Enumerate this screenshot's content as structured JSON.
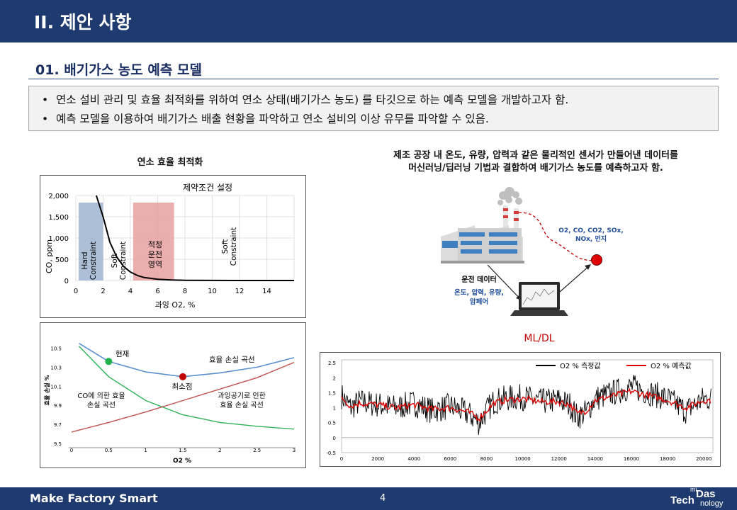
{
  "header": {
    "title": "II. 제안 사항"
  },
  "section": {
    "title": "01. 배기가스 농도 예측 모델"
  },
  "bullets": [
    "연소 설비 관리 및 효율 최적화를 위하여 연소 상태(배기가스 농도) 를 타깃으로 하는 예측 모델을 개발하고자 함.",
    "예측 모델을 이용하여 배기가스 배출 현황을  파악하고 연소 설비의 이상 유무를 파악할 수 있음."
  ],
  "left": {
    "caption": "연소 효율 최적화",
    "chart1": {
      "title": "제약조건 설정",
      "ylabel": "CO, ppm",
      "xlabel": "과잉 O2, %",
      "zones": {
        "hard": "Hard Constraint",
        "soft1": "Soft Constraint",
        "optimal": [
          "적정",
          "운전",
          "영역"
        ],
        "soft2": "Soft Constraint"
      }
    },
    "chart2": {
      "ylabel": "효율 손실 %",
      "xlabel": "O2 %",
      "labels": {
        "current": "현재",
        "minimum": "최소점",
        "total": "효율 손실 곡선",
        "co_curve": [
          "CO에 의한 효율",
          "손실 곡선"
        ],
        "air_curve": [
          "과잉공기로 인한",
          "효율 손실 곡선"
        ]
      }
    }
  },
  "right": {
    "caption": [
      "제조 공장 내 온도, 유량, 압력과 같은 물리적인 센서가 만들어낸 데이터를",
      "머신러닝/딥러닝 기법과 결합하여 배기가스 농도를 예측하고자 함."
    ],
    "diagram": {
      "gas_list": [
        "O2, CO, CO2, SOx,",
        "NOx, 먼지"
      ],
      "operation_data": "운전 데이터",
      "sensors": [
        "온도, 압력, 유량,",
        "암페어"
      ],
      "mldl": "ML/DL"
    },
    "chart3": {
      "legend_measured": "O2 % 측정값",
      "legend_predicted": "O2 % 예측값"
    }
  },
  "chart_data": [
    {
      "type": "line",
      "title": "제약조건 설정",
      "xlabel": "과잉 O2, %",
      "ylabel": "CO, ppm",
      "xlim": [
        0,
        16
      ],
      "ylim": [
        0,
        2000
      ],
      "x_ticks": [
        "0",
        "2",
        "4",
        "6",
        "8",
        "10",
        "12",
        "14"
      ],
      "y_ticks": [
        "0",
        "500",
        "1,000",
        "1,500",
        "2,000"
      ],
      "series": [
        {
          "x": [
            1.5,
            2,
            2.5,
            3,
            3.5,
            4,
            4.5,
            5,
            6,
            7,
            8,
            10,
            12,
            14,
            16
          ],
          "y": [
            2000,
            1500,
            900,
            550,
            330,
            200,
            120,
            70,
            30,
            12,
            5,
            2,
            0,
            0,
            0
          ]
        }
      ],
      "shaded_regions": [
        {
          "label": "Hard Constraint",
          "x": [
            0,
            2
          ],
          "color": "#9fb4cf"
        },
        {
          "label": "적정 운전 영역",
          "x": [
            4.2,
            7.2
          ],
          "color": "#e8a0a0"
        }
      ],
      "grid": true
    },
    {
      "type": "line",
      "xlabel": "O2 %",
      "ylabel": "효율 손실 %",
      "xlim": [
        0,
        3
      ],
      "ylim": [
        9.5,
        10.6
      ],
      "x_ticks": [
        "0",
        "0.5",
        "1",
        "1.5",
        "2",
        "2.5",
        "3"
      ],
      "y_ticks": [
        "9.5",
        "9.7",
        "9.9",
        "10.1",
        "10.3",
        "10.5"
      ],
      "series": [
        {
          "name": "효율 손실 곡선",
          "x": [
            0.1,
            0.5,
            1,
            1.5,
            2,
            2.5,
            3
          ],
          "y": [
            10.55,
            10.36,
            10.25,
            10.2,
            10.24,
            10.3,
            10.4
          ]
        },
        {
          "name": "CO에 의한 효율 손실 곡선",
          "x": [
            0.1,
            0.5,
            1,
            1.5,
            2,
            2.5,
            3
          ],
          "y": [
            10.52,
            10.2,
            9.95,
            9.8,
            9.72,
            9.68,
            9.65
          ]
        },
        {
          "name": "과잉공기로 인한 효율 손실 곡선",
          "x": [
            0,
            0.5,
            1,
            1.5,
            2,
            2.5,
            3
          ],
          "y": [
            9.62,
            9.72,
            9.83,
            9.95,
            10.07,
            10.19,
            10.35
          ]
        }
      ],
      "markers": [
        {
          "label": "현재",
          "x": 0.5,
          "y": 10.36,
          "color": "#22b14c"
        },
        {
          "label": "최소점",
          "x": 1.5,
          "y": 10.2,
          "color": "#c00000"
        }
      ]
    },
    {
      "type": "line",
      "xlim": [
        0,
        20500
      ],
      "ylim": [
        -0.5,
        2.6
      ],
      "x_ticks": [
        "0",
        "2000",
        "4000",
        "6000",
        "8000",
        "10000",
        "12000",
        "14000",
        "16000",
        "18000",
        "20000"
      ],
      "y_ticks": [
        "-0.5",
        "0",
        "0.5",
        "1",
        "1.5",
        "2",
        "2.5"
      ],
      "legend": "top-right",
      "series": [
        {
          "name": "O2 % 측정값",
          "color": "#000000",
          "x": [
            0,
            500,
            1000,
            2000,
            3000,
            4000,
            5000,
            6000,
            7000,
            7600,
            8000,
            8400,
            9000,
            10000,
            11000,
            12000,
            12600,
            13000,
            13500,
            14000,
            15000,
            16000,
            17000,
            18000,
            19000,
            20000
          ],
          "y": [
            1.4,
            1.0,
            1.2,
            1.1,
            1.0,
            1.15,
            0.9,
            1.05,
            0.8,
            0.5,
            0.9,
            1.2,
            1.3,
            1.35,
            1.2,
            1.25,
            1.1,
            0.7,
            0.85,
            1.3,
            1.5,
            1.7,
            1.5,
            1.3,
            0.9,
            1.3
          ]
        },
        {
          "name": "O2 % 예측값",
          "color": "#e00000",
          "x": [
            0,
            500,
            1000,
            2000,
            3000,
            4000,
            5000,
            6000,
            7000,
            7600,
            8000,
            8400,
            9000,
            10000,
            11000,
            12000,
            12600,
            13000,
            13500,
            14000,
            15000,
            16000,
            17000,
            18000,
            19000,
            20000
          ],
          "y": [
            1.35,
            1.05,
            1.15,
            1.1,
            1.0,
            1.1,
            0.95,
            1.0,
            0.85,
            0.65,
            0.9,
            1.15,
            1.25,
            1.3,
            1.2,
            1.2,
            1.1,
            0.8,
            0.9,
            1.25,
            1.4,
            1.55,
            1.4,
            1.25,
            1.0,
            1.25
          ]
        }
      ]
    }
  ],
  "footer": {
    "left": "Make Factory Smart",
    "page": "4",
    "logo_main1": "Tech",
    "logo_main2": "Das",
    "logo_small1": "mi",
    "logo_small2": "nology"
  }
}
